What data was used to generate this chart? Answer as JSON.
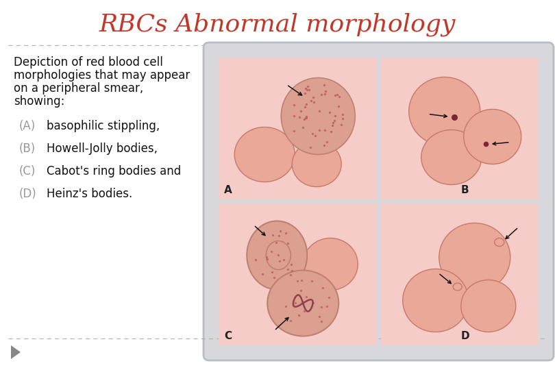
{
  "title": "RBCs Abnormal morphology",
  "title_color": "#c0392b",
  "title_fontsize": 26,
  "bg_color": "#ffffff",
  "main_text_lines": [
    "Depiction of red blood cell",
    "morphologies that may appear",
    "on a peripheral smear,",
    "showing:"
  ],
  "items": [
    {
      "label": "(A)",
      "text": "basophilic stippling,"
    },
    {
      "label": "(B)",
      "text": "Howell-Jolly bodies,"
    },
    {
      "label": "(C)",
      "text": "Cabot's ring bodies and"
    },
    {
      "label": "(D)",
      "text": "Heinz's bodies."
    }
  ],
  "text_fontsize": 12,
  "item_fontsize": 12,
  "panel_bg": "#f5ccc8",
  "cell_color_light": "#f0b0a8",
  "cell_color_normal": "#eaa898",
  "cell_color_dark": "#e09088",
  "cell_edge": "#c87868",
  "outer_box_color": "#b8bcc4",
  "outer_box_face": "#d8d8dc",
  "arrow_color": "#111111",
  "bottom_line_color": "#b0b8b0",
  "triangle_color": "#888888",
  "panel_label_color": "#222222",
  "label_gray": "#999999",
  "text_dark": "#111111"
}
